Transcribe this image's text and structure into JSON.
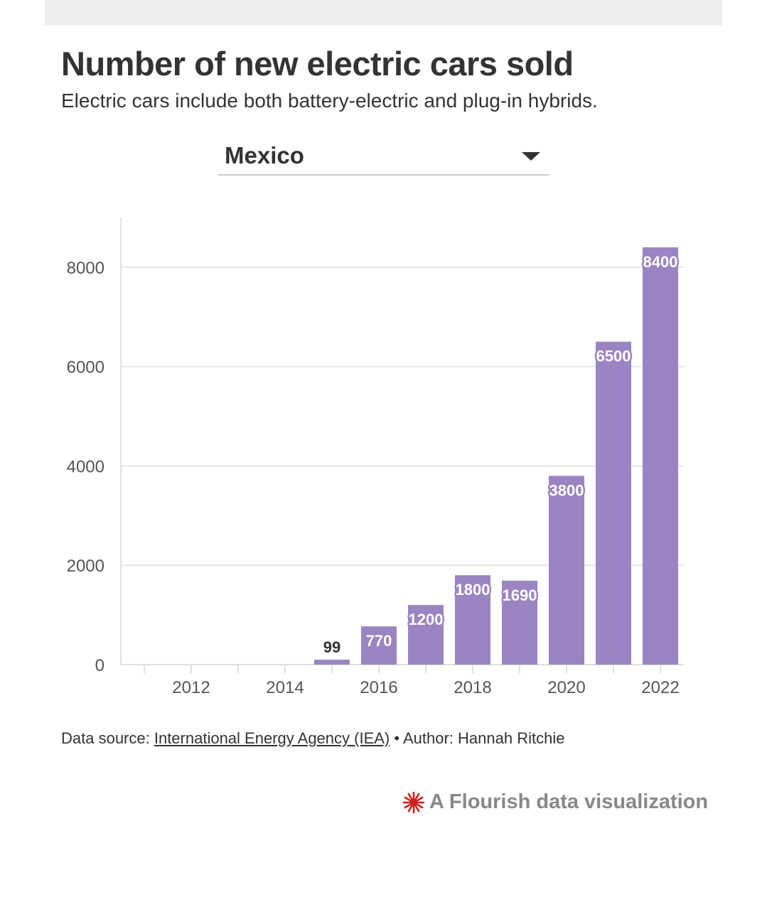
{
  "header": {
    "title": "Number of new electric cars sold",
    "subtitle": "Electric cars include both battery-electric and plug-in hybrids."
  },
  "selector": {
    "value": "Mexico"
  },
  "footer": {
    "source_prefix": "Data source: ",
    "source_link": "International Energy Agency (IEA)",
    "author": " • Author: Hannah Ritchie"
  },
  "branding": {
    "text": "A Flourish data visualization",
    "icon": "flourish-logo-icon"
  },
  "colors": {
    "bar": "#9b84c2",
    "grid": "#e6e6e6",
    "axis": "#e0e0e0",
    "text": "#333333",
    "logo": "#cc1f1f"
  },
  "chart_data": {
    "type": "bar",
    "categories": [
      "2011",
      "2012",
      "2013",
      "2014",
      "2015",
      "2016",
      "2017",
      "2018",
      "2019",
      "2020",
      "2021",
      "2022"
    ],
    "values": [
      null,
      null,
      null,
      null,
      99,
      770,
      1200,
      1800,
      1690,
      3800,
      6500,
      8400
    ],
    "data_labels": [
      "",
      "",
      "",
      "",
      "99",
      "770",
      "1200",
      "1800",
      "1690",
      "3800",
      "6500",
      "8400"
    ],
    "x_ticks": [
      "2012",
      "2014",
      "2016",
      "2018",
      "2020",
      "2022"
    ],
    "y_ticks": [
      "0",
      "2000",
      "4000",
      "6000",
      "8000"
    ],
    "ylim": [
      0,
      9000
    ],
    "grid": true,
    "legend": "none"
  }
}
